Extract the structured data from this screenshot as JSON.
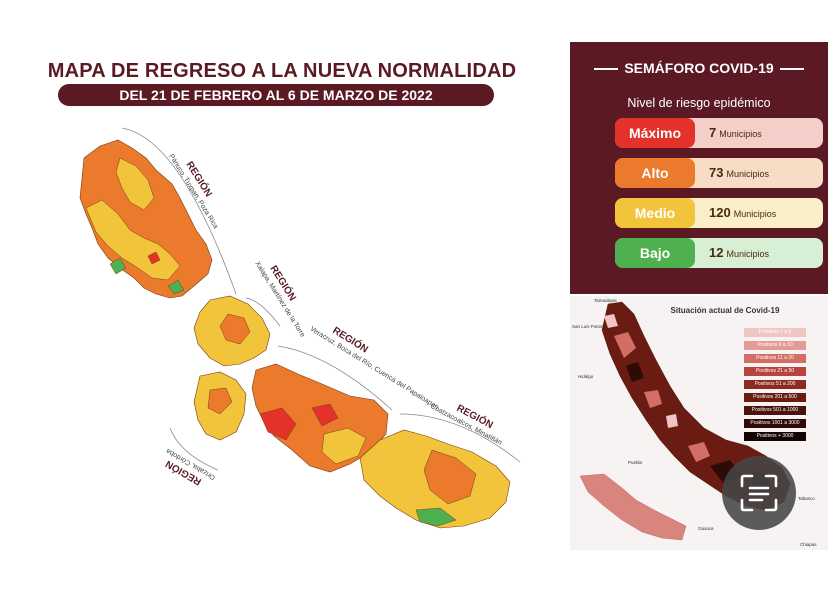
{
  "title": "MAPA DE REGRESO A LA NUEVA NORMALIDAD",
  "date_range": "DEL 21 DE FEBRERO AL 6 DE MARZO DE 2022",
  "regions": [
    {
      "heading": "REGIÓN",
      "name": "Pánuco, Tuxpan, Poza Rica"
    },
    {
      "heading": "REGIÓN",
      "name": "Xalapa, Martínez de la Torre"
    },
    {
      "heading": "REGIÓN",
      "name": "Veracruz, Boca del Río, Cuenca del Papaloapan"
    },
    {
      "heading": "REGIÓN",
      "name": "Coatzacoalcos, Minatitlán"
    },
    {
      "heading": "REGIÓN",
      "name": "Orizaba, Córdoba"
    }
  ],
  "semaforo": {
    "title": "SEMÁFORO COVID-19",
    "subtitle": "Nivel de riesgo epidémico",
    "levels": [
      {
        "label": "Máximo",
        "count": "7",
        "unit": "Municipios",
        "color": "#e4322b",
        "bg": "#f4cfc9"
      },
      {
        "label": "Alto",
        "count": "73",
        "unit": "Municipios",
        "color": "#ec7a2d",
        "bg": "#f8ddc6"
      },
      {
        "label": "Medio",
        "count": "120",
        "unit": "Municipios",
        "color": "#f2c43c",
        "bg": "#fbefca"
      },
      {
        "label": "Bajo",
        "count": "12",
        "unit": "Municipios",
        "color": "#4fb04f",
        "bg": "#d7efd5"
      }
    ]
  },
  "situacion": {
    "title": "Situación actual de Covid-19",
    "places": [
      "Tamaulipas",
      "San Luis Potosí",
      "Hidalgo",
      "Puebla",
      "Oaxaca",
      "Tabasco",
      "Chiapas"
    ],
    "legend": [
      {
        "label": "Positivos 1 a 5",
        "color": "#efc6c4"
      },
      {
        "label": "Positivos 6 a 10",
        "color": "#e39b97"
      },
      {
        "label": "Positivos 11 a 20",
        "color": "#d26e66"
      },
      {
        "label": "Positivos 21 a 50",
        "color": "#b8453c"
      },
      {
        "label": "Positivos 51 a 200",
        "color": "#8e2a1f"
      },
      {
        "label": "Positivos 201 a 500",
        "color": "#6a1c12"
      },
      {
        "label": "Positivos 501 a 1000",
        "color": "#4a130c"
      },
      {
        "label": "Positivos 1001 a 3000",
        "color": "#2e0b06"
      },
      {
        "label": "Positivos + 3000",
        "color": "#140402"
      }
    ]
  },
  "colors": {
    "brand": "#5b1a23",
    "maximo": "#e4322b",
    "alto": "#ec7a2d",
    "medio": "#f2c43c",
    "bajo": "#4fb04f"
  },
  "icons": [
    "scan-text-icon"
  ]
}
